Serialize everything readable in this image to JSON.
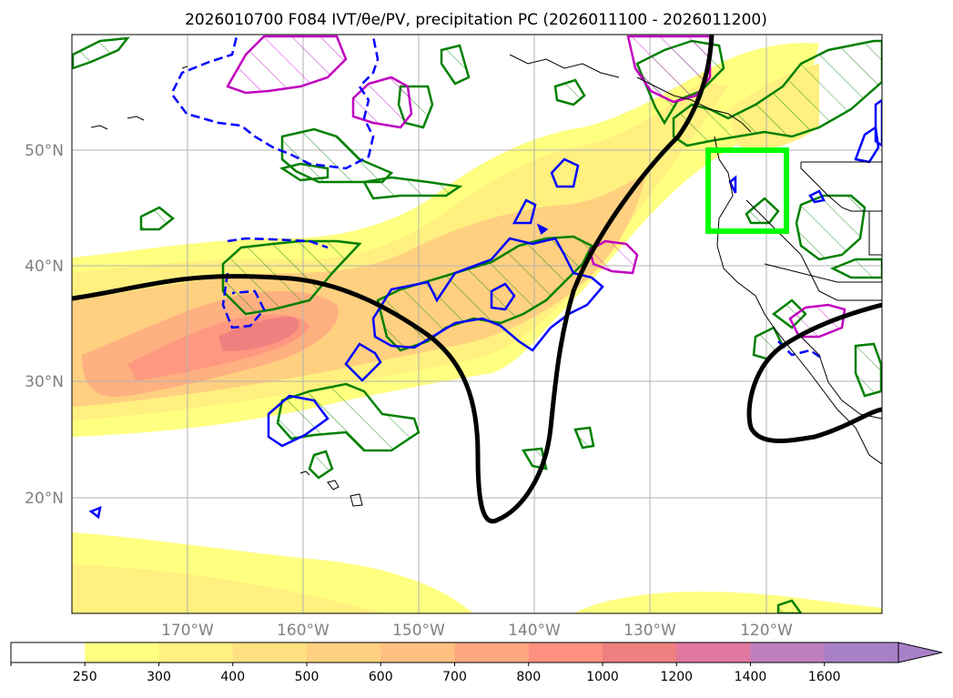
{
  "title": "2026010700 F084 IVT/θe/PV, precipitation PC (2026011100 - 2026011200)",
  "latitude_labels": [
    "50°N",
    "40°N",
    "30°N",
    "20°N"
  ],
  "longitude_labels": [
    "170°W",
    "160°W",
    "150°W",
    "140°W",
    "130°W",
    "120°W"
  ],
  "colorbar": {
    "ticks": [
      "250",
      "300",
      "400",
      "500",
      "600",
      "700",
      "800",
      "1000",
      "1200",
      "1400",
      "1600"
    ],
    "colors": [
      "#ffffff",
      "#ffff80",
      "#fff080",
      "#ffe080",
      "#ffd080",
      "#ffc080",
      "#ffa880",
      "#ff9080",
      "#f08080",
      "#e078a0",
      "#c080c0",
      "#a880c8"
    ]
  },
  "colors": {
    "jet_contour": "#000000",
    "precip_hatch": "#008000",
    "pv_contour": "#c000c0",
    "theta_contour": "#0000ff",
    "focus_box": "#00ff00",
    "coastline": "#000000",
    "grid": "#b0b0b0"
  }
}
